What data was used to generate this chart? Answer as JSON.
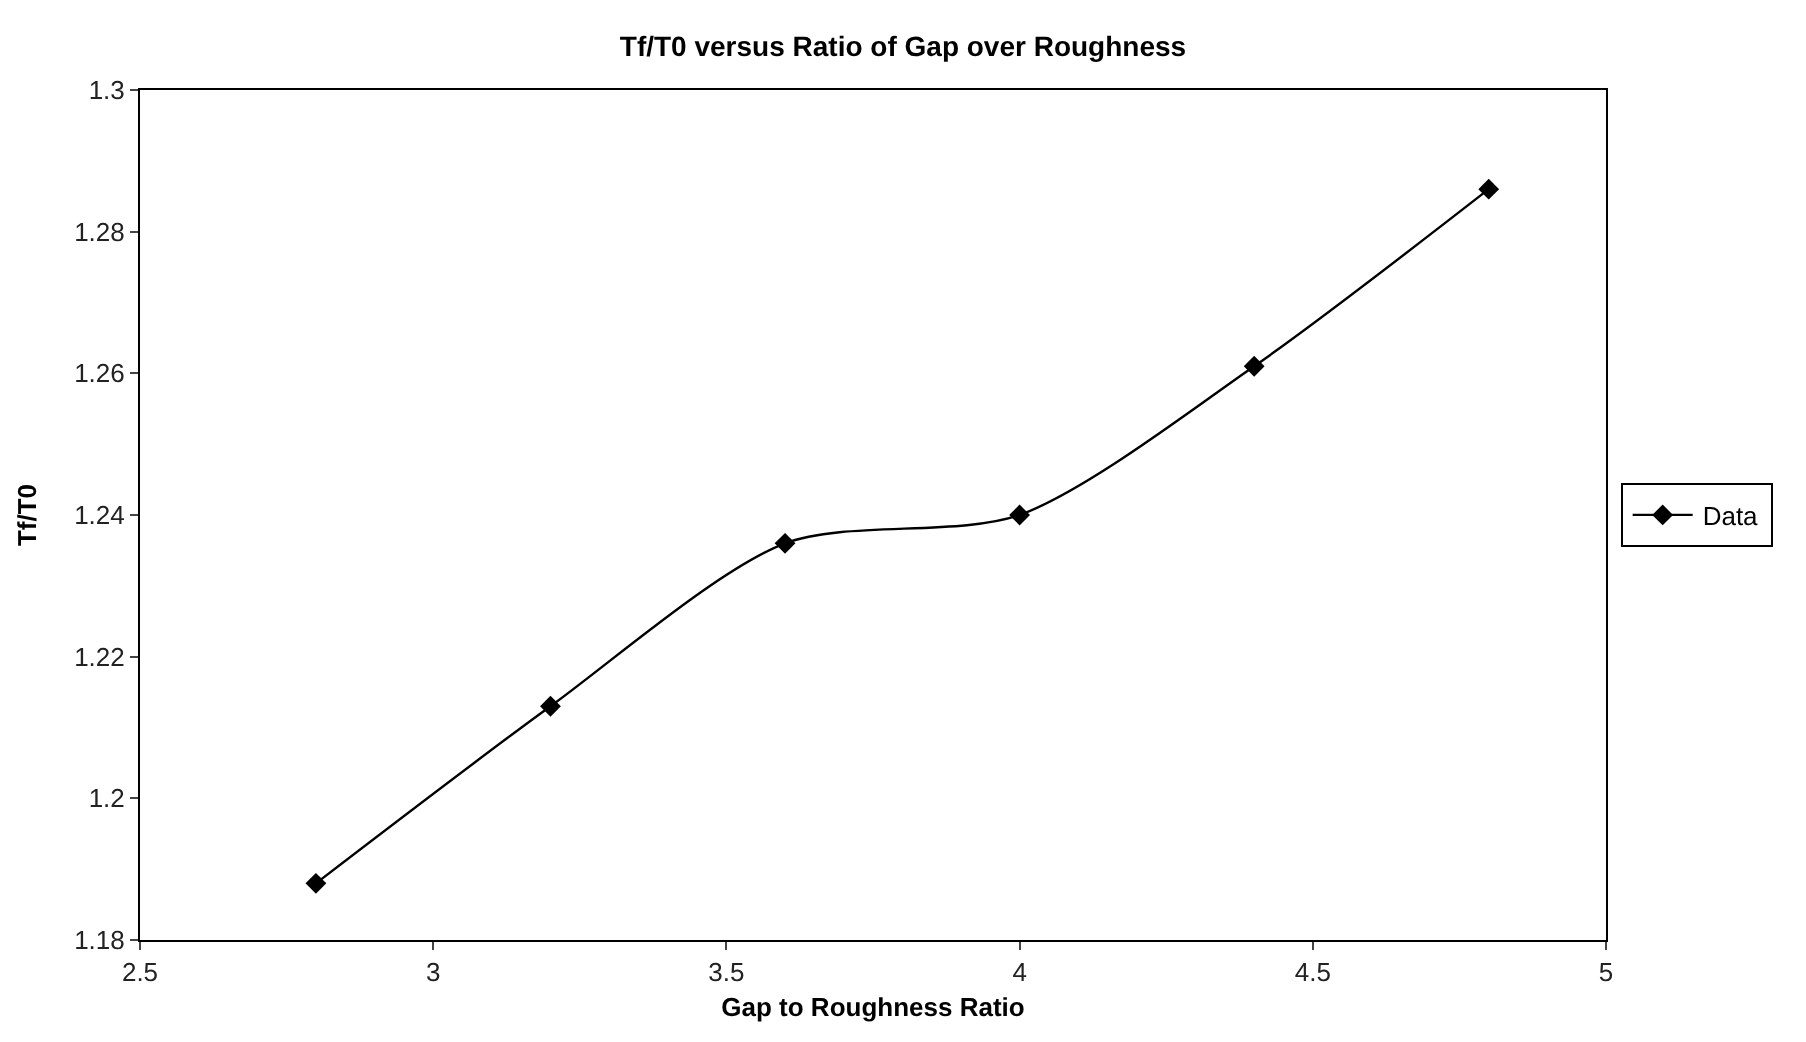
{
  "chart_data": {
    "type": "line",
    "title": "Tf/T0 versus Ratio of Gap over Roughness",
    "xlabel": "Gap to Roughness Ratio",
    "ylabel": "Tf/T0",
    "x": [
      2.8,
      3.2,
      3.6,
      4.0,
      4.4,
      4.8
    ],
    "series": [
      {
        "name": "Data",
        "color": "#000000",
        "values": [
          1.188,
          1.213,
          1.236,
          1.24,
          1.261,
          1.286
        ]
      }
    ],
    "xlim": [
      2.5,
      5
    ],
    "xticks": [
      2.5,
      3,
      3.5,
      4,
      4.5,
      5
    ],
    "ylim": [
      1.18,
      1.3
    ],
    "yticks": [
      1.18,
      1.2,
      1.22,
      1.24,
      1.26,
      1.28,
      1.3
    ],
    "legend": "right",
    "marker": "diamond",
    "line_style": "solid"
  }
}
